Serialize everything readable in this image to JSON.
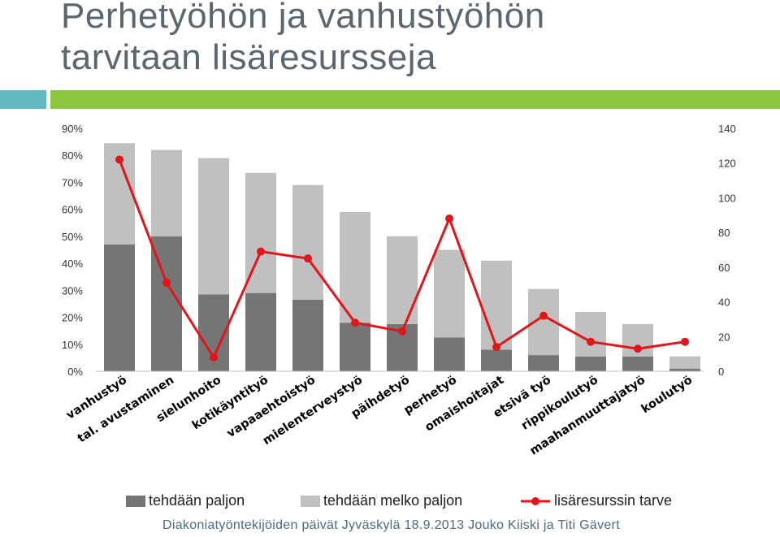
{
  "slide": {
    "title_line1": "Perhetyöhön ja vanhustyöhön",
    "title_line2": "tarvitaan lisäresursseja",
    "footer": "Diakoniatyöntekijöiden päivät Jyväskylä 18.9.2013   Jouko Kiiski ja Titi Gävert"
  },
  "colors": {
    "dark_bar": "#757575",
    "light_bar": "#c0c0c0",
    "line": "#e0161b",
    "accent_teal": "#64b8c2",
    "accent_green": "#8dc63f"
  },
  "chart_data": {
    "type": "bar",
    "stacked": true,
    "categories": [
      "vanhustyö",
      "tal. avustaminen",
      "sielunhoito",
      "kotikäyntityö",
      "vapaaehtoistyö",
      "mielenterveystyö",
      "päihdetyö",
      "perhetyö",
      "omaishoitajat",
      "etsivä työ",
      "rippikoulutyö",
      "maahanmuuttajatyö",
      "koulutyö"
    ],
    "y_left": {
      "ticks": [
        "0%",
        "10%",
        "20%",
        "30%",
        "40%",
        "50%",
        "60%",
        "70%",
        "80%",
        "90%"
      ],
      "min": 0,
      "max": 90
    },
    "y_right": {
      "ticks": [
        "0",
        "20",
        "40",
        "60",
        "80",
        "100",
        "120",
        "140"
      ],
      "min": 0,
      "max": 140
    },
    "series": [
      {
        "name": "tehdään paljon",
        "axis": "left",
        "type": "bar",
        "color": "#757575",
        "values": [
          47,
          50,
          28.5,
          29,
          26.5,
          18,
          17.5,
          12.5,
          8,
          6,
          5.5,
          5.5,
          1
        ]
      },
      {
        "name": "tehdään melko paljon",
        "axis": "left",
        "type": "bar",
        "color": "#c0c0c0",
        "values": [
          37.5,
          32,
          50.5,
          44.5,
          42.5,
          41,
          32.5,
          32.5,
          33,
          24.5,
          16.5,
          12,
          4.5
        ]
      },
      {
        "name": "lisäresurssin tarve",
        "axis": "right",
        "type": "line",
        "color": "#e0161b",
        "values": [
          122,
          51,
          8,
          69,
          65,
          28,
          23,
          88,
          14,
          32,
          17,
          13,
          17
        ]
      }
    ],
    "grid": false,
    "legend_position": "bottom"
  }
}
